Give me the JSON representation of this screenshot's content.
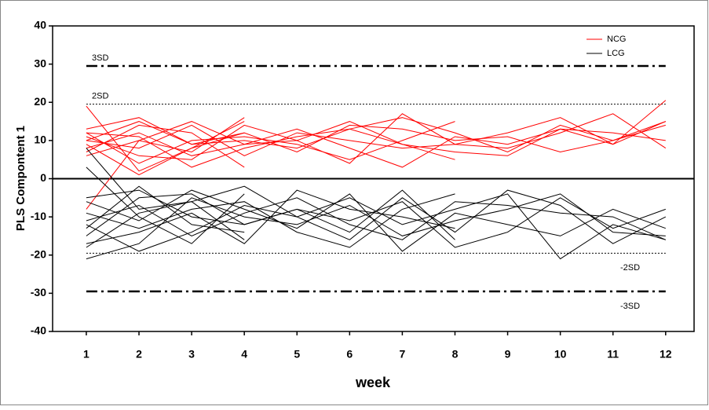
{
  "chart_data": {
    "type": "line",
    "x_label": "week",
    "y_label": "PLS Compontent 1",
    "x": [
      1,
      2,
      3,
      4,
      5,
      6,
      7,
      8,
      9,
      10,
      11,
      12
    ],
    "xlim": [
      0.36,
      12.54
    ],
    "xticks": [
      1,
      2,
      3,
      4,
      5,
      6,
      7,
      8,
      9,
      10,
      11,
      12
    ],
    "ylim": [
      -40,
      40
    ],
    "yticks": [
      -40,
      -30,
      -20,
      -10,
      0,
      10,
      20,
      30,
      40
    ],
    "legend": "upper right",
    "reference_lines": [
      {
        "value": 29.5,
        "label": "3SD",
        "style": "dashdot"
      },
      {
        "value": 19.5,
        "label": "2SD",
        "style": "dotted"
      },
      {
        "value": -19.5,
        "label": "-2SD",
        "style": "dotted"
      },
      {
        "value": -29.5,
        "label": "-3SD",
        "style": "dashdot"
      }
    ],
    "series": [
      {
        "name": "NCG",
        "color": "#ff0000",
        "values": [
          [
            19,
            2,
            8,
            15,
            null,
            null,
            null,
            null,
            null,
            null,
            null,
            null
          ],
          [
            13,
            16,
            9,
            10,
            8,
            13,
            16,
            12,
            7,
            14,
            10,
            15
          ],
          [
            12,
            4,
            10,
            11,
            9,
            5,
            10,
            15,
            null,
            null,
            null,
            null
          ],
          [
            10,
            8,
            14,
            6,
            12,
            10,
            8,
            9,
            12,
            16,
            9,
            20.5
          ],
          [
            8,
            12,
            6,
            9,
            10,
            4,
            17,
            9,
            8,
            12,
            17,
            8
          ],
          [
            -8,
            10,
            7,
            16,
            null,
            null,
            null,
            null,
            null,
            null,
            null,
            null
          ],
          [
            11,
            6,
            5,
            14,
            10,
            15,
            9,
            5,
            null,
            null,
            null,
            null
          ],
          [
            7,
            14,
            12,
            3,
            null,
            null,
            null,
            null,
            null,
            null,
            null,
            null
          ],
          [
            9,
            1,
            8,
            12,
            7,
            14,
            13,
            10,
            11,
            7,
            10,
            14
          ],
          [
            6,
            10,
            15,
            9,
            13,
            8,
            3,
            11,
            9,
            13,
            12,
            10
          ],
          [
            12,
            11,
            3,
            8,
            11,
            13,
            9,
            7,
            6,
            13,
            9,
            15
          ],
          [
            10,
            15,
            9,
            12,
            null,
            null,
            null,
            null,
            null,
            null,
            null,
            null
          ]
        ]
      },
      {
        "name": "LCG",
        "color": "#000000",
        "values": [
          [
            8,
            -8,
            -6,
            -16,
            null,
            null,
            null,
            null,
            null,
            null,
            null,
            null
          ],
          [
            -5,
            -3,
            -10,
            -12,
            -8,
            -14,
            -3,
            -16,
            null,
            null,
            null,
            null
          ],
          [
            -12,
            -19,
            -14,
            -7,
            -10,
            -5,
            -12,
            -8,
            -4,
            -21,
            -12,
            -16
          ],
          [
            3,
            -10,
            -17,
            -4,
            null,
            null,
            null,
            null,
            null,
            null,
            null,
            null
          ],
          [
            -15,
            -5,
            -4,
            -12,
            -8,
            -11,
            -6,
            -18,
            -14,
            -5,
            -13,
            -8
          ],
          [
            -21,
            -17,
            -5,
            -10,
            -12,
            -7,
            -15,
            -11,
            -8,
            -4,
            -14,
            -15
          ],
          [
            -9,
            -13,
            -8,
            -6,
            -14,
            -18,
            -8,
            -4,
            null,
            null,
            null,
            null
          ],
          [
            -11,
            -7,
            -15,
            -9,
            -5,
            -12,
            -16,
            -6,
            -7,
            -9,
            -10,
            -16
          ],
          [
            -17,
            -14,
            -9,
            -17,
            -3,
            -8,
            -10,
            -13,
            null,
            null,
            null,
            null
          ],
          [
            -6,
            -11,
            -3,
            -8,
            -13,
            -4,
            -19,
            -9,
            -12,
            -15,
            -8,
            -13
          ],
          [
            -13,
            -2,
            -12,
            -14,
            null,
            null,
            null,
            null,
            null,
            null,
            null,
            null
          ],
          [
            -18,
            -9,
            -6,
            -2,
            -10,
            -16,
            -5,
            -14,
            -3,
            -7,
            -17,
            -10
          ]
        ]
      }
    ]
  }
}
